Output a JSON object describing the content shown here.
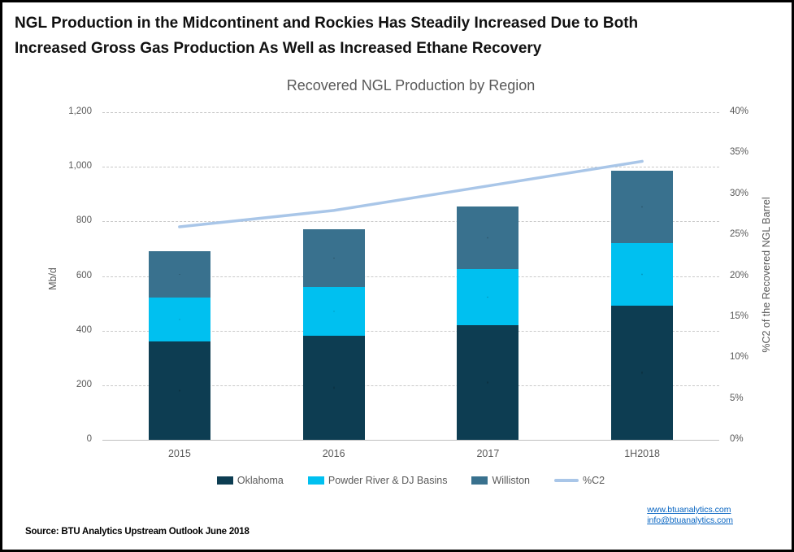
{
  "header": {
    "title_line1": "NGL Production in the Midcontinent and Rockies Has Steadily Increased Due to Both",
    "title_line2": "Increased Gross Gas Production As Well as Increased Ethane Recovery"
  },
  "chart_data": {
    "type": "bar",
    "subtype": "stacked-bar-with-line",
    "title": "Recovered NGL Production by Region",
    "categories": [
      "2015",
      "2016",
      "2017",
      "1H2018"
    ],
    "series": [
      {
        "name": "Oklahoma",
        "type": "bar",
        "color": "#0d3d52",
        "values": [
          360,
          380,
          420,
          490
        ]
      },
      {
        "name": "Powder River & DJ Basins",
        "type": "bar",
        "color": "#00c0f0",
        "values": [
          160,
          180,
          205,
          230
        ]
      },
      {
        "name": "Williston",
        "type": "bar",
        "color": "#39718e",
        "values": [
          170,
          210,
          230,
          265
        ]
      },
      {
        "name": "%C2",
        "type": "line",
        "color": "#a9c6e8",
        "axis": "right",
        "values": [
          26,
          28,
          31,
          34
        ]
      }
    ],
    "stacked_totals": [
      690,
      770,
      855,
      985
    ],
    "xlabel": "",
    "ylabel": "Mb/d",
    "y2label": "%C2 of the Recovered NGL Barrel",
    "ylim": [
      0,
      1200
    ],
    "y2lim": [
      0,
      40
    ],
    "left_ticks": [
      "1,200",
      "1,000",
      "800",
      "600",
      "400",
      "200",
      "0"
    ],
    "right_ticks": [
      "40%",
      "35%",
      "30%",
      "25%",
      "20%",
      "15%",
      "10%",
      "5%",
      "0%"
    ],
    "grid": true,
    "legend_position": "bottom"
  },
  "footer": {
    "source": "Source: BTU Analytics Upstream Outlook June 2018",
    "links": [
      "www.btuanalytics.com",
      "info@btuanalytics.com"
    ]
  }
}
